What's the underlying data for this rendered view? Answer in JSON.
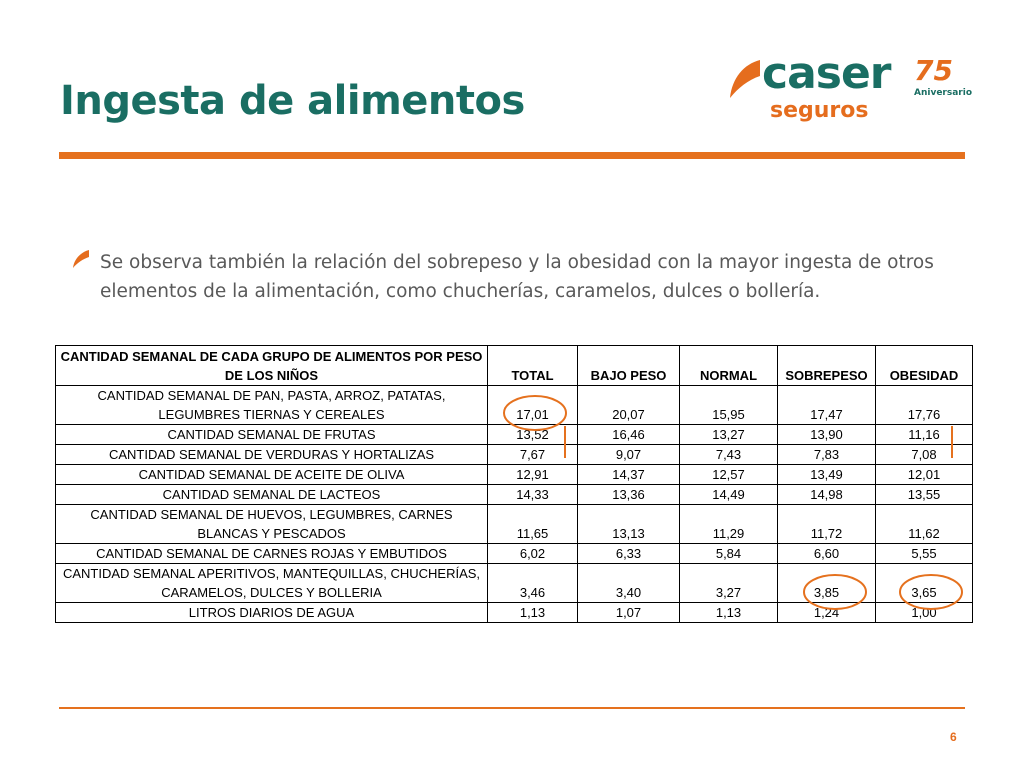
{
  "slide": {
    "title": "Ingesta de alimentos",
    "page_number": "6",
    "bullet_text": "Se observa también la relación del sobrepeso y la obesidad con la mayor ingesta de otros elementos de la alimentación, como chucherías, caramelos, dulces o bollería."
  },
  "logo": {
    "brand": "caser",
    "sub": "seguros",
    "anniversary_number": "75",
    "anniversary_label": "Aniversario"
  },
  "colors": {
    "title": "#1a6e63",
    "accent": "#e5711e",
    "body_text": "#595959"
  },
  "table": {
    "headers": {
      "category": "CANTIDAD SEMANAL DE CADA GRUPO DE ALIMENTOS POR PESO DE LOS NIÑOS",
      "total": "TOTAL",
      "bajo_peso": "BAJO PESO",
      "normal": "NORMAL",
      "sobrepeso": "SOBREPESO",
      "obesidad": "OBESIDAD"
    },
    "rows": [
      {
        "label": "CANTIDAD SEMANAL DE PAN, PASTA, ARROZ, PATATAS, LEGUMBRES TIERNAS Y CEREALES",
        "total": "17,01",
        "bajo_peso": "20,07",
        "normal": "15,95",
        "sobrepeso": "17,47",
        "obesidad": "17,76"
      },
      {
        "label": "CANTIDAD SEMANAL DE FRUTAS",
        "total": "13,52",
        "bajo_peso": "16,46",
        "normal": "13,27",
        "sobrepeso": "13,90",
        "obesidad": "11,16"
      },
      {
        "label": "CANTIDAD SEMANAL DE VERDURAS Y HORTALIZAS",
        "total": "7,67",
        "bajo_peso": "9,07",
        "normal": "7,43",
        "sobrepeso": "7,83",
        "obesidad": "7,08"
      },
      {
        "label": "CANTIDAD SEMANAL DE ACEITE DE OLIVA",
        "total": "12,91",
        "bajo_peso": "14,37",
        "normal": "12,57",
        "sobrepeso": "13,49",
        "obesidad": "12,01"
      },
      {
        "label": "CANTIDAD SEMANAL DE LACTEOS",
        "total": "14,33",
        "bajo_peso": "13,36",
        "normal": "14,49",
        "sobrepeso": "14,98",
        "obesidad": "13,55"
      },
      {
        "label": "CANTIDAD SEMANAL DE HUEVOS, LEGUMBRES, CARNES BLANCAS Y PESCADOS",
        "total": "11,65",
        "bajo_peso": "13,13",
        "normal": "11,29",
        "sobrepeso": "11,72",
        "obesidad": "11,62"
      },
      {
        "label": "CANTIDAD SEMANAL DE CARNES ROJAS Y EMBUTIDOS",
        "total": "6,02",
        "bajo_peso": "6,33",
        "normal": "5,84",
        "sobrepeso": "6,60",
        "obesidad": "5,55"
      },
      {
        "label": "CANTIDAD SEMANAL APERITIVOS, MANTEQUILLAS, CHUCHERÍAS, CARAMELOS, DULCES Y BOLLERIA",
        "total": "3,46",
        "bajo_peso": "3,40",
        "normal": "3,27",
        "sobrepeso": "3,85",
        "obesidad": "3,65"
      },
      {
        "label": "LITROS DIARIOS DE AGUA",
        "total": "1,13",
        "bajo_peso": "1,07",
        "normal": "1,13",
        "sobrepeso": "1,24",
        "obesidad": "1,00"
      }
    ]
  }
}
